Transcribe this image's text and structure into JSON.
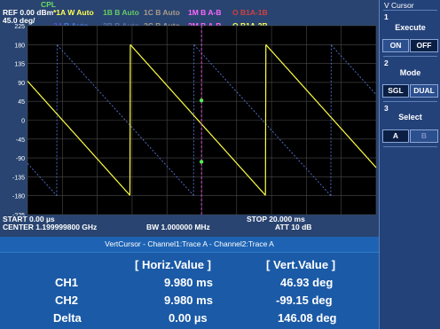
{
  "header": {
    "cpl": "CPL",
    "ref": "REF  0.00 dBm",
    "scale": "45.0 deg/",
    "legend": [
      {
        "text": "*1A W Auto",
        "color": "#ffff55"
      },
      {
        "text": "1B B Auto",
        "color": "#66cc66"
      },
      {
        "text": "1C B Auto",
        "color": "#a89a8a"
      },
      {
        "text": "1M B A-B",
        "color": "#ff66ff"
      },
      {
        "text": "O B1A-1B",
        "color": "#d04040"
      },
      {
        "text": "2A",
        "color": "#5a4fcf"
      },
      {
        "text": "B Auto",
        "color": "#4a7ad8"
      },
      {
        "text": "2B B Auto",
        "color": "#5a6fa8"
      },
      {
        "text": "2C B Auto",
        "color": "#a89a8a"
      },
      {
        "text": "2M B A-B",
        "color": "#ff66ff"
      },
      {
        "text": "O B1A-2B",
        "color": "#ffff55"
      }
    ]
  },
  "plot": {
    "y_ticks": [
      "225",
      "180",
      "135",
      "90",
      "45",
      "0",
      "-45",
      "-90",
      "-135",
      "-180",
      "-225"
    ],
    "trace_a_color": "#ffff44",
    "trace_b_color": "#5575d8",
    "cursor_color": "#dd44dd",
    "marker_color": "#55ee55"
  },
  "footer": {
    "start": "START  0.00 µs",
    "center": "CENTER 1.199999800 GHz",
    "bw": "BW 1.000000 MHz",
    "stop": "STOP 20.000 ms",
    "att": "ATT 10 dB"
  },
  "measurement": {
    "title": "VertCursor - Channel1:Trace A - Channel2:Trace A",
    "col_horiz": "[ Horiz.Value ]",
    "col_vert": "[ Vert.Value ]",
    "rows": [
      {
        "label": "CH1",
        "horiz": "9.980 ms",
        "vert": "46.93 deg"
      },
      {
        "label": "CH2",
        "horiz": "9.980 ms",
        "vert": "-99.15 deg"
      },
      {
        "label": "Delta",
        "horiz": "0.00 µs",
        "vert": "146.08 deg"
      }
    ]
  },
  "softkeys": {
    "title": "V Cursor",
    "groups": [
      {
        "num": "1",
        "label": "Execute",
        "buttons": [
          "ON",
          "OFF"
        ]
      },
      {
        "num": "2",
        "label": "Mode",
        "buttons": [
          "SGL",
          "DUAL"
        ]
      },
      {
        "num": "3",
        "label": "Select",
        "buttons": [
          "A",
          "B"
        ]
      }
    ]
  }
}
